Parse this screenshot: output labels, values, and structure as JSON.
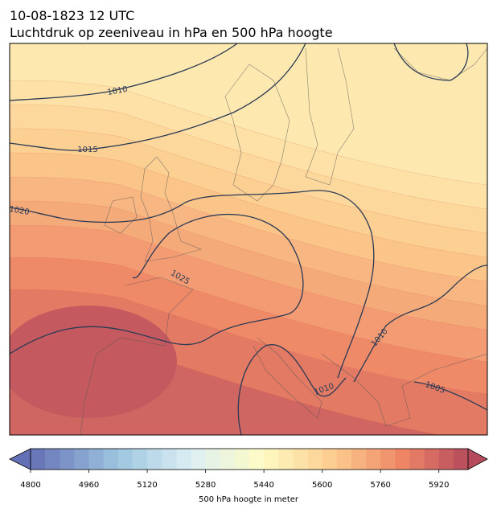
{
  "header": {
    "date": "10-08-1823 12 UTC",
    "title": "Luchtdruk op zeeniveau in hPa en 500 hPa hoogte"
  },
  "isobar_labels": [
    "1010",
    "1015",
    "1020",
    "1025",
    "1010",
    "1010",
    "1005"
  ],
  "colorbar": {
    "lim": [
      4800,
      6000
    ],
    "step": 40,
    "ticks": [
      4800,
      4960,
      5120,
      5280,
      5440,
      5600,
      5760,
      5920
    ],
    "label": "500 hPa hoogte in meter"
  }
}
